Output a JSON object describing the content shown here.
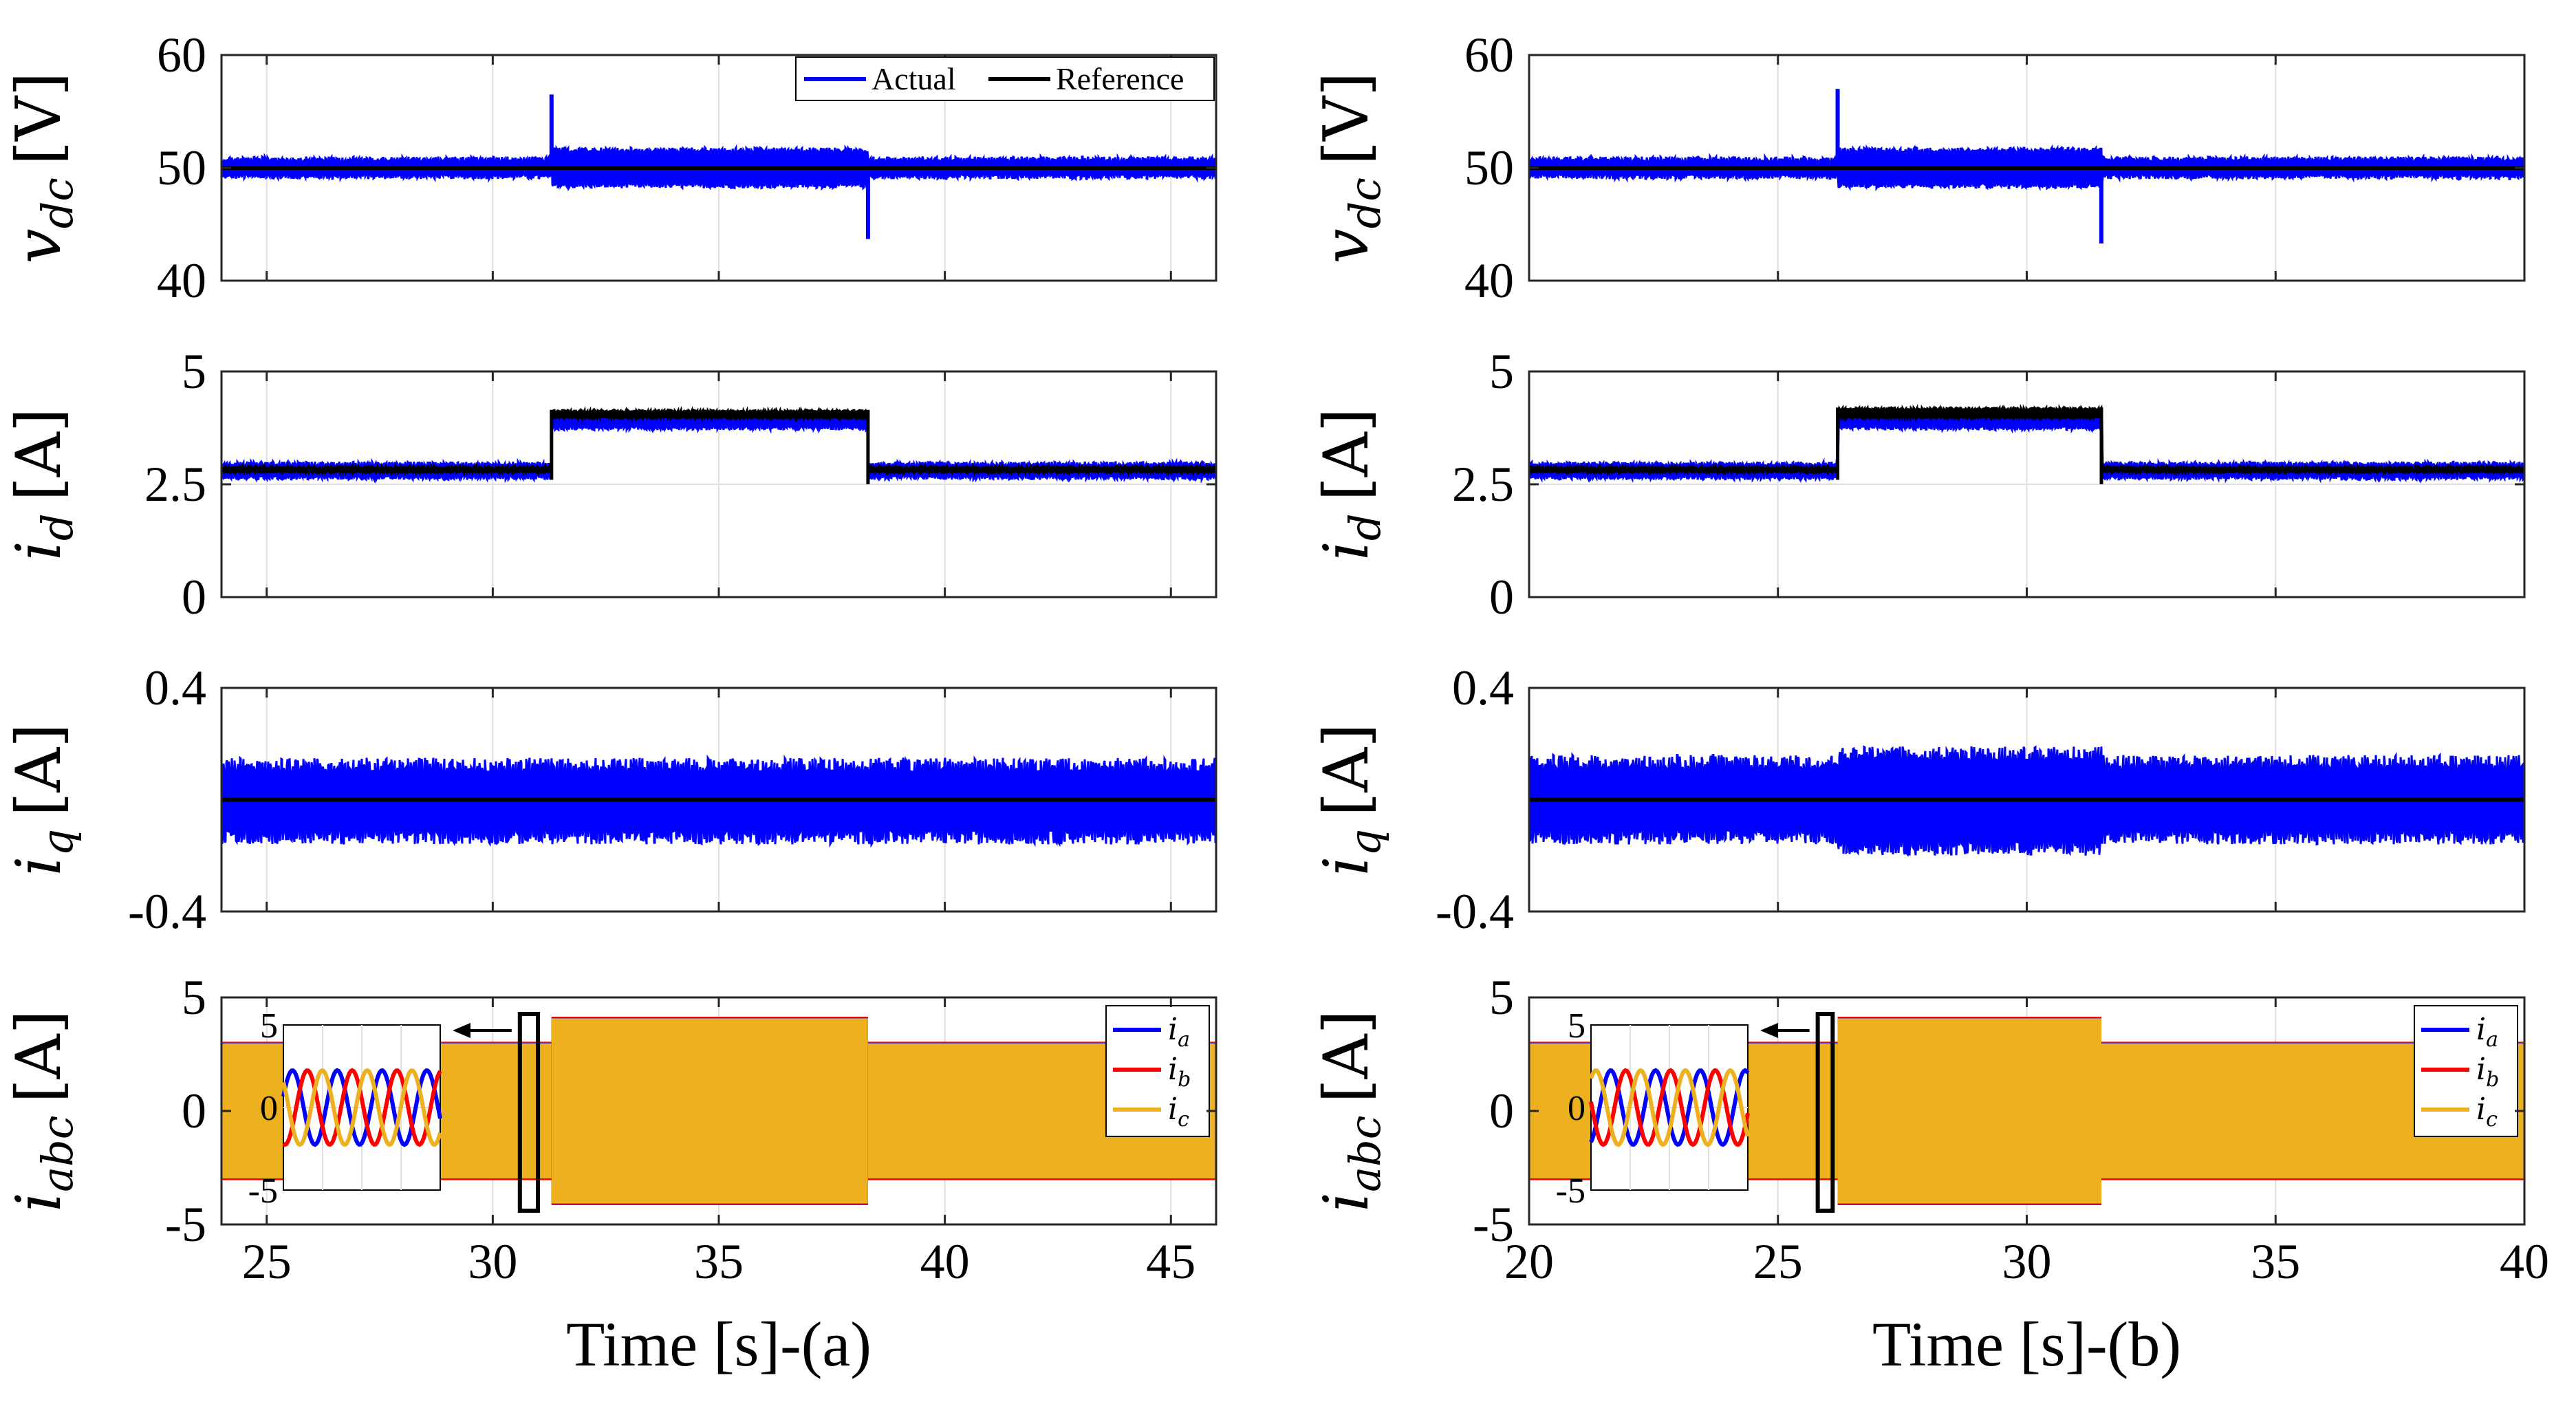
{
  "colors": {
    "actual": "#0000ff",
    "reference": "#000000",
    "ia": "#0000ff",
    "ib": "#ff0000",
    "ic": "#edb120",
    "grid": "#dfdfdf"
  },
  "legend_top": {
    "actual": "Actual",
    "reference": "Reference"
  },
  "legend_abc": {
    "ia": "a",
    "ib": "b",
    "ic": "c"
  },
  "ylabels": {
    "vdc": {
      "sym": "v",
      "sub": "dc",
      "unit": "[V]"
    },
    "id": {
      "sym": "i",
      "sub": "d",
      "unit": "[A]"
    },
    "iq": {
      "sym": "i",
      "sub": "q",
      "unit": "[A]"
    },
    "iabc": {
      "sym": "i",
      "sub": "abc",
      "unit": "[A]"
    }
  },
  "inset_ticks": [
    "5",
    "0",
    "-5"
  ],
  "chart_data": [
    {
      "type": "line",
      "panel": "a",
      "xtitle": "Time [s]-(a)",
      "xlim": [
        24,
        46
      ],
      "xticks": [
        25,
        30,
        35,
        40,
        45
      ],
      "xtick_labels": [
        "25",
        "30",
        "35",
        "40",
        "45"
      ],
      "step_on": 31.3,
      "step_off": 38.3,
      "zoom_box_x": [
        30.6,
        31.0
      ],
      "inset_time": [
        29.2,
        29.35
      ],
      "subplots": [
        {
          "name": "vdc",
          "ylim": [
            40,
            60
          ],
          "yticks": [
            40,
            50,
            60
          ],
          "ytick_labels": [
            "40",
            "50",
            "60"
          ],
          "series": [
            {
              "name": "Actual",
              "mean": 50,
              "band": [
                49,
                51
              ],
              "band_high": [
                48.2,
                51.8
              ],
              "spike_up": 56.5,
              "spike_down": 43.7
            },
            {
              "name": "Reference",
              "value": 50
            }
          ]
        },
        {
          "name": "id",
          "ylim": [
            0,
            5
          ],
          "yticks": [
            0,
            2.5,
            5
          ],
          "ytick_labels": [
            "0",
            "2.5",
            "5"
          ],
          "series": [
            {
              "name": "Actual",
              "low": [
                2.6,
                3.0
              ],
              "high": [
                3.7,
                4.1
              ]
            },
            {
              "name": "Reference",
              "low": [
                2.75,
                2.9
              ],
              "high": [
                3.95,
                4.15
              ]
            }
          ]
        },
        {
          "name": "iq",
          "ylim": [
            -0.4,
            0.4
          ],
          "yticks": [
            -0.4,
            0.4
          ],
          "ytick_labels": [
            "-0.4",
            "0.4"
          ],
          "series": [
            {
              "name": "Actual",
              "band": [
                -0.16,
                0.15
              ]
            },
            {
              "name": "Reference",
              "value": 0
            }
          ]
        },
        {
          "name": "iabc",
          "ylim": [
            -5,
            5
          ],
          "yticks": [
            -5,
            0,
            5
          ],
          "ytick_labels": [
            "-5",
            "0",
            "5"
          ],
          "series": [
            {
              "name": "i_a",
              "amp_low": 3.0,
              "amp_high": 4.1
            },
            {
              "name": "i_b",
              "amp_low": 3.0,
              "amp_high": 4.1
            },
            {
              "name": "i_c",
              "amp_low": 3.0,
              "amp_high": 4.1
            }
          ]
        }
      ]
    },
    {
      "type": "line",
      "panel": "b",
      "xtitle": "Time [s]-(b)",
      "xlim": [
        20,
        40
      ],
      "xticks": [
        20,
        25,
        30,
        35,
        40
      ],
      "xtick_labels": [
        "20",
        "25",
        "30",
        "35",
        "40"
      ],
      "step_on": 26.2,
      "step_off": 31.5,
      "zoom_box_x": [
        25.8,
        26.1
      ],
      "inset_time": [
        24.9,
        25.05
      ],
      "subplots": [
        {
          "name": "vdc",
          "ylim": [
            40,
            60
          ],
          "yticks": [
            40,
            50,
            60
          ],
          "ytick_labels": [
            "40",
            "50",
            "60"
          ],
          "series": [
            {
              "name": "Actual",
              "mean": 50,
              "band": [
                49,
                51
              ],
              "band_high": [
                48.2,
                51.8
              ],
              "spike_up": 57,
              "spike_down": 43.3
            },
            {
              "name": "Reference",
              "value": 50
            }
          ]
        },
        {
          "name": "id",
          "ylim": [
            0,
            5
          ],
          "yticks": [
            0,
            2.5,
            5
          ],
          "ytick_labels": [
            "0",
            "2.5",
            "5"
          ],
          "series": [
            {
              "name": "Actual",
              "low": [
                2.6,
                3.0
              ],
              "high": [
                3.7,
                4.1
              ]
            },
            {
              "name": "Reference",
              "low": [
                2.75,
                2.9
              ],
              "high": [
                3.95,
                4.2
              ]
            }
          ]
        },
        {
          "name": "iq",
          "ylim": [
            -0.4,
            0.4
          ],
          "yticks": [
            -0.4,
            0.4
          ],
          "ytick_labels": [
            "-0.4",
            "0.4"
          ],
          "series": [
            {
              "name": "Actual",
              "band": [
                -0.16,
                0.16
              ],
              "band_high": [
                -0.2,
                0.19
              ]
            },
            {
              "name": "Reference",
              "value": 0
            }
          ]
        },
        {
          "name": "iabc",
          "ylim": [
            -5,
            5
          ],
          "yticks": [
            -5,
            0,
            5
          ],
          "ytick_labels": [
            "-5",
            "0",
            "5"
          ],
          "series": [
            {
              "name": "i_a",
              "amp_low": 3.0,
              "amp_high": 4.1
            },
            {
              "name": "i_b",
              "amp_low": 3.0,
              "amp_high": 4.1
            },
            {
              "name": "i_c",
              "amp_low": 3.0,
              "amp_high": 4.1
            }
          ]
        }
      ]
    }
  ]
}
